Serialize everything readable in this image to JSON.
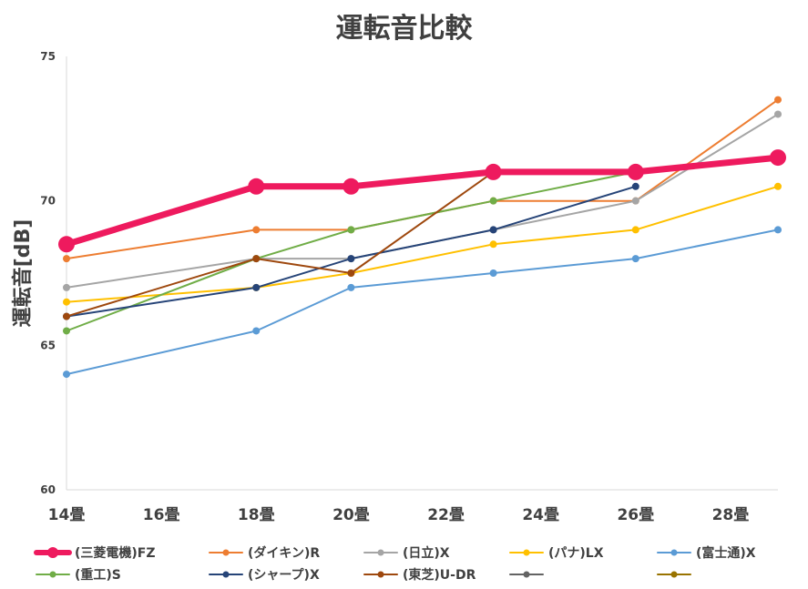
{
  "chart_data": {
    "type": "line",
    "title": "運転音比較",
    "ylabel": "運転音[dB]",
    "xlabel": "",
    "ylim": [
      60,
      75
    ],
    "yticks": [
      "60",
      "65",
      "70",
      "75"
    ],
    "categories": [
      "14畳",
      "16畳",
      "18畳",
      "20畳",
      "22畳",
      "24畳",
      "26畳",
      "28畳"
    ],
    "x_range": [
      14,
      29
    ],
    "grid": false,
    "legend_position": "bottom",
    "series": [
      {
        "name": "(三菱電機)FZ",
        "color": "#EE1A5E",
        "width": 7,
        "marker": 9,
        "points": [
          [
            14,
            68.5
          ],
          [
            18,
            70.5
          ],
          [
            20,
            70.5
          ],
          [
            23,
            71
          ],
          [
            26,
            71
          ],
          [
            29,
            71.5
          ]
        ]
      },
      {
        "name": "(ダイキン)R",
        "color": "#ED7D31",
        "width": 2,
        "marker": 4,
        "points": [
          [
            14,
            68
          ],
          [
            18,
            69
          ],
          [
            20,
            69
          ],
          [
            23,
            70
          ],
          [
            26,
            70
          ],
          [
            29,
            73.5
          ]
        ]
      },
      {
        "name": "(日立)X",
        "color": "#A5A5A5",
        "width": 2,
        "marker": 4,
        "points": [
          [
            14,
            67
          ],
          [
            18,
            68
          ],
          [
            20,
            68
          ],
          [
            23,
            69
          ],
          [
            26,
            70
          ],
          [
            29,
            73
          ]
        ]
      },
      {
        "name": "(パナ)LX",
        "color": "#FFC000",
        "width": 2,
        "marker": 4,
        "points": [
          [
            14,
            66.5
          ],
          [
            18,
            67
          ],
          [
            20,
            67.5
          ],
          [
            23,
            68.5
          ],
          [
            26,
            69
          ],
          [
            29,
            70.5
          ]
        ]
      },
      {
        "name": "(富士通)X",
        "color": "#5B9BD5",
        "width": 2,
        "marker": 4,
        "points": [
          [
            14,
            64
          ],
          [
            18,
            65.5
          ],
          [
            20,
            67
          ],
          [
            23,
            67.5
          ],
          [
            26,
            68
          ],
          [
            29,
            69
          ]
        ]
      },
      {
        "name": "(重工)S",
        "color": "#70AD47",
        "width": 2,
        "marker": 4,
        "points": [
          [
            14,
            65.5
          ],
          [
            18,
            68
          ],
          [
            20,
            69
          ],
          [
            23,
            70
          ],
          [
            26,
            71
          ]
        ]
      },
      {
        "name": "(シャープ)X",
        "color": "#264478",
        "width": 2,
        "marker": 4,
        "points": [
          [
            14,
            66
          ],
          [
            18,
            67
          ],
          [
            20,
            68
          ],
          [
            23,
            69
          ],
          [
            26,
            70.5
          ]
        ]
      },
      {
        "name": "(東芝)U-DR",
        "color": "#9E480E",
        "width": 2,
        "marker": 4,
        "points": [
          [
            14,
            66
          ],
          [
            18,
            68
          ],
          [
            20,
            67.5
          ],
          [
            23,
            71
          ],
          [
            26,
            71
          ]
        ]
      },
      {
        "name": "",
        "color": "#636363",
        "width": 2,
        "marker": 4,
        "points": []
      },
      {
        "name": "",
        "color": "#997300",
        "width": 2,
        "marker": 4,
        "points": []
      }
    ]
  }
}
